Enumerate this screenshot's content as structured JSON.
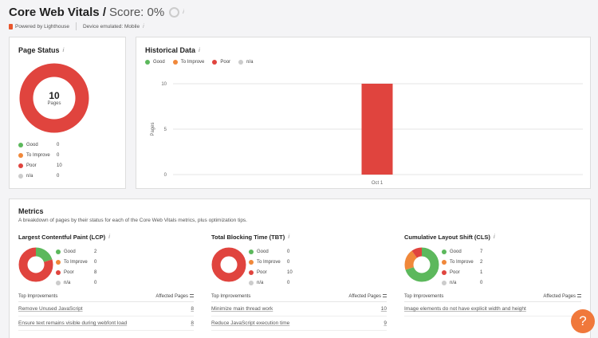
{
  "header": {
    "title": "Core Web Vitals /",
    "score": "Score: 0%",
    "info": "i",
    "powered_by": "Powered by Lighthouse",
    "device": "Device emulated: Mobile"
  },
  "colors": {
    "good": "#5cb85c",
    "improve": "#f0883a",
    "poor": "#e0443e",
    "na": "#cccccc",
    "accent": "#f0783b"
  },
  "page_status": {
    "title": "Page Status",
    "total": "10",
    "total_label": "Pages",
    "legend": [
      {
        "label": "Good",
        "value": "0"
      },
      {
        "label": "To Improve",
        "value": "0"
      },
      {
        "label": "Poor",
        "value": "10"
      },
      {
        "label": "n/a",
        "value": "0"
      }
    ]
  },
  "historical": {
    "title": "Historical Data",
    "legend": [
      "Good",
      "To Improve",
      "Poor",
      "n/a"
    ]
  },
  "chart_data": {
    "type": "bar",
    "categories": [
      "Oct 1"
    ],
    "series": [
      {
        "name": "Good",
        "values": [
          0
        ]
      },
      {
        "name": "To Improve",
        "values": [
          0
        ]
      },
      {
        "name": "Poor",
        "values": [
          10
        ]
      },
      {
        "name": "n/a",
        "values": [
          0
        ]
      }
    ],
    "ylabel": "Pages",
    "yticks": [
      "10",
      "5",
      "0"
    ],
    "ylim": [
      0,
      10
    ],
    "grid": true,
    "legend": "top-left"
  },
  "metrics": {
    "title": "Metrics",
    "description": "A breakdown of pages by their status for each of the Core Web Vitals metrics, plus optimization tips.",
    "col_top": "Top Improvements",
    "col_affected": "Affected Pages",
    "items": [
      {
        "title": "Largest Contentful Paint (LCP)",
        "legend": [
          {
            "label": "Good",
            "value": "2"
          },
          {
            "label": "To Improve",
            "value": "0"
          },
          {
            "label": "Poor",
            "value": "8"
          },
          {
            "label": "n/a",
            "value": "0"
          }
        ],
        "rows": [
          {
            "text": "Remove Unused JavaScript",
            "count": "8"
          },
          {
            "text": "Ensure text remains visible during webfont load",
            "count": "8"
          }
        ]
      },
      {
        "title": "Total Blocking Time (TBT)",
        "legend": [
          {
            "label": "Good",
            "value": "0"
          },
          {
            "label": "To Improve",
            "value": "0"
          },
          {
            "label": "Poor",
            "value": "10"
          },
          {
            "label": "n/a",
            "value": "0"
          }
        ],
        "rows": [
          {
            "text": "Minimize main thread work",
            "count": "10"
          },
          {
            "text": "Reduce JavaScript execution time",
            "count": "9"
          }
        ]
      },
      {
        "title": "Cumulative Layout Shift (CLS)",
        "legend": [
          {
            "label": "Good",
            "value": "7"
          },
          {
            "label": "To Improve",
            "value": "2"
          },
          {
            "label": "Poor",
            "value": "1"
          },
          {
            "label": "n/a",
            "value": "0"
          }
        ],
        "rows": [
          {
            "text": "Image elements do not have explicit width and height",
            "count": ""
          }
        ]
      }
    ]
  },
  "help": {
    "label": "?"
  }
}
